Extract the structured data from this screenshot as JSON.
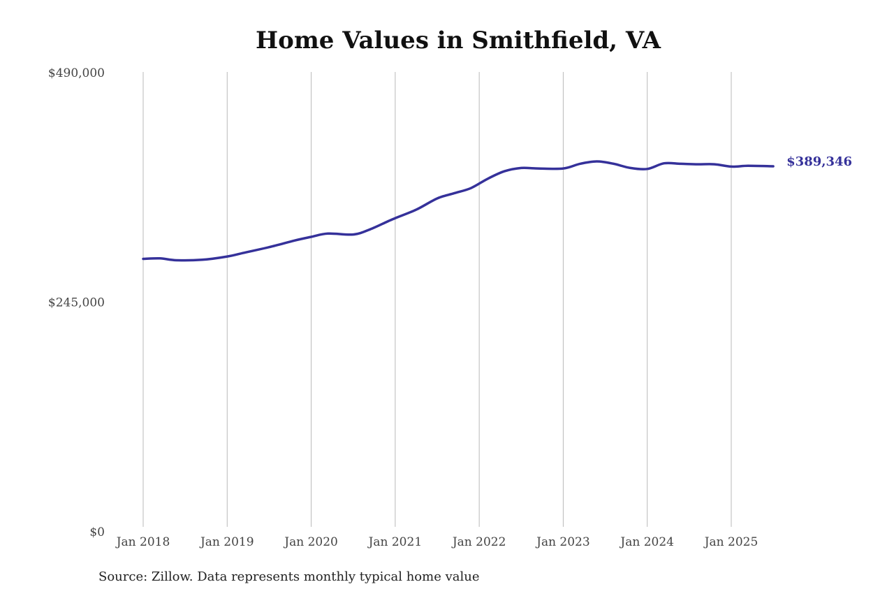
{
  "chart_data": {
    "type": "line",
    "title": "Home Values in Smithfield, VA",
    "xlabel": "",
    "ylabel": "",
    "ylim": [
      0,
      490000
    ],
    "y_ticks": [
      "$0",
      "$245,000",
      "$490,000"
    ],
    "y_tick_values": [
      0,
      245000,
      490000
    ],
    "x_ticks": [
      "Jan 2018",
      "Jan 2019",
      "Jan 2020",
      "Jan 2021",
      "Jan 2022",
      "Jan 2023",
      "Jan 2024",
      "Jan 2025"
    ],
    "x_tick_values": [
      2018.0,
      2019.0,
      2020.0,
      2021.0,
      2022.0,
      2023.0,
      2024.0,
      2025.0
    ],
    "xlim": [
      2018.0,
      2025.5
    ],
    "grid": "vertical",
    "series": [
      {
        "color": "#35319a",
        "end_label": "$389,346",
        "x": [
          2018.0,
          2018.2,
          2018.4,
          2018.7,
          2019.0,
          2019.2,
          2019.5,
          2019.8,
          2020.0,
          2020.2,
          2020.5,
          2020.7,
          2020.9,
          2021.0,
          2021.25,
          2021.5,
          2021.7,
          2021.9,
          2022.1,
          2022.3,
          2022.5,
          2022.7,
          2023.0,
          2023.2,
          2023.4,
          2023.6,
          2023.8,
          2024.0,
          2024.2,
          2024.4,
          2024.6,
          2024.8,
          2025.0,
          2025.2,
          2025.5
        ],
        "y": [
          290500,
          291000,
          289000,
          289500,
          293000,
          297000,
          303000,
          310000,
          314000,
          317500,
          316500,
          322000,
          330000,
          334000,
          343000,
          355000,
          360500,
          366000,
          376000,
          384000,
          387500,
          387000,
          387000,
          392000,
          394500,
          392000,
          387500,
          386500,
          392500,
          392000,
          391500,
          391500,
          389000,
          389800,
          389346
        ]
      }
    ]
  },
  "source_note": "Source: Zillow. Data represents monthly typical home value"
}
